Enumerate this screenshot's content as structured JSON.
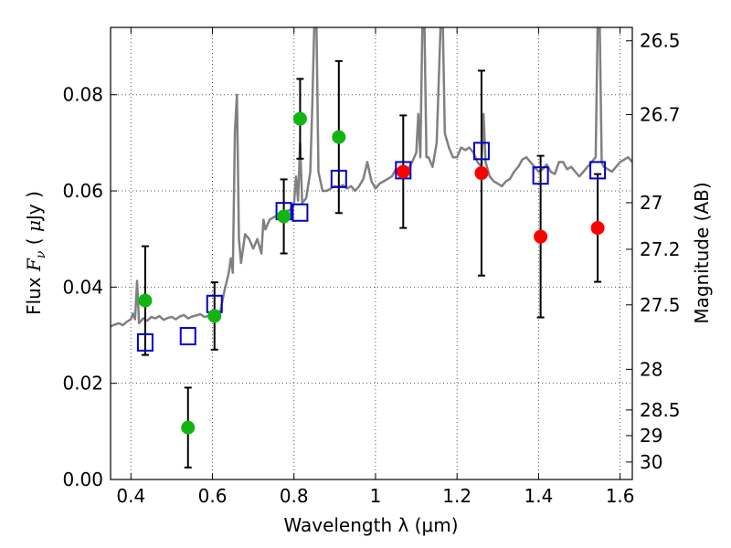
{
  "chart_data": {
    "type": "scatter",
    "xlabel": "Wavelength  λ (μm)",
    "ylabel": "Flux  F_ν  ( μJy )",
    "ylabel_parts": {
      "prefix": "Flux  ",
      "symbol": "F",
      "subscript": "ν",
      "mid": "  ( ",
      "unit_symbol": "μ",
      "unit": "Jy )"
    },
    "y2label": "Magnitude (AB)",
    "xlim": [
      0.35,
      1.63
    ],
    "ylim": [
      0.0,
      0.094
    ],
    "grid": true,
    "x_ticks": [
      {
        "value": 0.4,
        "label": "0.4"
      },
      {
        "value": 0.6,
        "label": "0.6"
      },
      {
        "value": 0.8,
        "label": "0.8"
      },
      {
        "value": 1.0,
        "label": "1"
      },
      {
        "value": 1.2,
        "label": "1.2"
      },
      {
        "value": 1.4,
        "label": "1.4"
      },
      {
        "value": 1.6,
        "label": "1.6"
      }
    ],
    "y_ticks": [
      {
        "value": 0.0,
        "label": "0.00"
      },
      {
        "value": 0.02,
        "label": "0.02"
      },
      {
        "value": 0.04,
        "label": "0.04"
      },
      {
        "value": 0.06,
        "label": "0.06"
      },
      {
        "value": 0.08,
        "label": "0.08"
      }
    ],
    "y2_ticks": [
      {
        "mag": 26.5,
        "label": "26.5"
      },
      {
        "mag": 26.7,
        "label": "26.7"
      },
      {
        "mag": 27.0,
        "label": "27"
      },
      {
        "mag": 27.2,
        "label": "27.2"
      },
      {
        "mag": 27.5,
        "label": "27.5"
      },
      {
        "mag": 28.0,
        "label": "28"
      },
      {
        "mag": 28.5,
        "label": "28.5"
      },
      {
        "mag": 29.0,
        "label": "29"
      },
      {
        "mag": 30.0,
        "label": "30"
      }
    ],
    "colors": {
      "spectrum": "#808080",
      "model_box": "#0000cc",
      "green_point": "#11b511",
      "red_point": "#ff0000",
      "errorbar": "#000000",
      "grid": "#555555"
    },
    "spectrum": [
      [
        0.35,
        0.0318
      ],
      [
        0.36,
        0.0322
      ],
      [
        0.37,
        0.0325
      ],
      [
        0.38,
        0.0321
      ],
      [
        0.39,
        0.0328
      ],
      [
        0.4,
        0.0333
      ],
      [
        0.405,
        0.0345
      ],
      [
        0.41,
        0.0333
      ],
      [
        0.415,
        0.0413
      ],
      [
        0.42,
        0.0325
      ],
      [
        0.43,
        0.0335
      ],
      [
        0.44,
        0.033
      ],
      [
        0.45,
        0.0338
      ],
      [
        0.46,
        0.0335
      ],
      [
        0.47,
        0.034
      ],
      [
        0.48,
        0.0332
      ],
      [
        0.49,
        0.0336
      ],
      [
        0.5,
        0.0338
      ],
      [
        0.51,
        0.0333
      ],
      [
        0.52,
        0.0339
      ],
      [
        0.53,
        0.0342
      ],
      [
        0.54,
        0.0335
      ],
      [
        0.55,
        0.0339
      ],
      [
        0.56,
        0.0341
      ],
      [
        0.57,
        0.0344
      ],
      [
        0.58,
        0.0338
      ],
      [
        0.59,
        0.034
      ],
      [
        0.6,
        0.0345
      ],
      [
        0.61,
        0.0343
      ],
      [
        0.62,
        0.0352
      ],
      [
        0.63,
        0.0395
      ],
      [
        0.64,
        0.043
      ],
      [
        0.645,
        0.046
      ],
      [
        0.65,
        0.043
      ],
      [
        0.655,
        0.0725
      ],
      [
        0.66,
        0.08
      ],
      [
        0.665,
        0.05
      ],
      [
        0.67,
        0.045
      ],
      [
        0.68,
        0.051
      ],
      [
        0.69,
        0.05
      ],
      [
        0.7,
        0.048
      ],
      [
        0.71,
        0.05
      ],
      [
        0.72,
        0.047
      ],
      [
        0.725,
        0.054
      ],
      [
        0.73,
        0.052
      ],
      [
        0.74,
        0.054
      ],
      [
        0.75,
        0.0545
      ],
      [
        0.76,
        0.055
      ],
      [
        0.77,
        0.0555
      ],
      [
        0.78,
        0.0558
      ],
      [
        0.79,
        0.056
      ],
      [
        0.8,
        0.0572
      ],
      [
        0.805,
        0.063
      ],
      [
        0.81,
        0.058
      ],
      [
        0.815,
        0.07
      ],
      [
        0.82,
        0.0575
      ],
      [
        0.83,
        0.0585
      ],
      [
        0.84,
        0.064
      ],
      [
        0.845,
        0.078
      ],
      [
        0.85,
        0.095
      ],
      [
        0.855,
        0.095
      ],
      [
        0.86,
        0.064
      ],
      [
        0.87,
        0.06
      ],
      [
        0.88,
        0.06
      ],
      [
        0.89,
        0.0605
      ],
      [
        0.9,
        0.061
      ],
      [
        0.91,
        0.0608
      ],
      [
        0.92,
        0.0612
      ],
      [
        0.93,
        0.0605
      ],
      [
        0.94,
        0.061
      ],
      [
        0.95,
        0.06
      ],
      [
        0.96,
        0.061
      ],
      [
        0.97,
        0.0625
      ],
      [
        0.98,
        0.066
      ],
      [
        0.99,
        0.062
      ],
      [
        1.0,
        0.0605
      ],
      [
        1.01,
        0.0615
      ],
      [
        1.02,
        0.062
      ],
      [
        1.03,
        0.0625
      ],
      [
        1.04,
        0.063
      ],
      [
        1.05,
        0.0645
      ],
      [
        1.06,
        0.0635
      ],
      [
        1.07,
        0.064
      ],
      [
        1.08,
        0.0645
      ],
      [
        1.09,
        0.066
      ],
      [
        1.1,
        0.068
      ],
      [
        1.105,
        0.076
      ],
      [
        1.11,
        0.067
      ],
      [
        1.115,
        0.095
      ],
      [
        1.12,
        0.095
      ],
      [
        1.125,
        0.067
      ],
      [
        1.13,
        0.067
      ],
      [
        1.14,
        0.065
      ],
      [
        1.15,
        0.07
      ],
      [
        1.16,
        0.095
      ],
      [
        1.165,
        0.095
      ],
      [
        1.17,
        0.072
      ],
      [
        1.18,
        0.069
      ],
      [
        1.19,
        0.067
      ],
      [
        1.2,
        0.067
      ],
      [
        1.21,
        0.069
      ],
      [
        1.22,
        0.0685
      ],
      [
        1.23,
        0.069
      ],
      [
        1.24,
        0.068
      ],
      [
        1.25,
        0.066
      ],
      [
        1.26,
        0.065
      ],
      [
        1.265,
        0.076
      ],
      [
        1.27,
        0.066
      ],
      [
        1.28,
        0.063
      ],
      [
        1.29,
        0.062
      ],
      [
        1.3,
        0.0615
      ],
      [
        1.31,
        0.061
      ],
      [
        1.32,
        0.062
      ],
      [
        1.33,
        0.0625
      ],
      [
        1.34,
        0.064
      ],
      [
        1.35,
        0.065
      ],
      [
        1.36,
        0.0665
      ],
      [
        1.37,
        0.067
      ],
      [
        1.38,
        0.066
      ],
      [
        1.39,
        0.065
      ],
      [
        1.4,
        0.064
      ],
      [
        1.41,
        0.0645
      ],
      [
        1.42,
        0.0655
      ],
      [
        1.43,
        0.064
      ],
      [
        1.44,
        0.0635
      ],
      [
        1.45,
        0.066
      ],
      [
        1.46,
        0.066
      ],
      [
        1.47,
        0.0645
      ],
      [
        1.48,
        0.065
      ],
      [
        1.49,
        0.064
      ],
      [
        1.5,
        0.063
      ],
      [
        1.51,
        0.064
      ],
      [
        1.52,
        0.065
      ],
      [
        1.53,
        0.066
      ],
      [
        1.54,
        0.067
      ],
      [
        1.545,
        0.095
      ],
      [
        1.55,
        0.095
      ],
      [
        1.555,
        0.066
      ],
      [
        1.56,
        0.065
      ],
      [
        1.57,
        0.0645
      ],
      [
        1.58,
        0.064
      ],
      [
        1.59,
        0.065
      ],
      [
        1.6,
        0.066
      ],
      [
        1.61,
        0.0665
      ],
      [
        1.62,
        0.067
      ],
      [
        1.63,
        0.066
      ]
    ],
    "model_boxes": [
      {
        "x": 0.435,
        "y": 0.0285
      },
      {
        "x": 0.54,
        "y": 0.0298
      },
      {
        "x": 0.605,
        "y": 0.0365
      },
      {
        "x": 0.775,
        "y": 0.0558
      },
      {
        "x": 0.815,
        "y": 0.0555
      },
      {
        "x": 0.91,
        "y": 0.0625
      },
      {
        "x": 1.068,
        "y": 0.0643
      },
      {
        "x": 1.26,
        "y": 0.0683
      },
      {
        "x": 1.405,
        "y": 0.0632
      },
      {
        "x": 1.545,
        "y": 0.0643
      }
    ],
    "observed_points": [
      {
        "x": 0.435,
        "y": 0.0372,
        "err": 0.0113,
        "band": "green"
      },
      {
        "x": 0.54,
        "y": 0.0108,
        "err": 0.0083,
        "band": "green"
      },
      {
        "x": 0.605,
        "y": 0.034,
        "err": 0.007,
        "band": "green"
      },
      {
        "x": 0.775,
        "y": 0.0547,
        "err": 0.0077,
        "band": "green"
      },
      {
        "x": 0.815,
        "y": 0.075,
        "err": 0.0083,
        "band": "green"
      },
      {
        "x": 0.91,
        "y": 0.0712,
        "err": 0.0158,
        "band": "green"
      },
      {
        "x": 1.068,
        "y": 0.064,
        "err": 0.0117,
        "band": "red"
      },
      {
        "x": 1.26,
        "y": 0.0637,
        "err": 0.0213,
        "band": "red"
      },
      {
        "x": 1.405,
        "y": 0.0505,
        "err": 0.0168,
        "band": "red"
      },
      {
        "x": 1.545,
        "y": 0.0523,
        "err": 0.0112,
        "band": "red"
      }
    ]
  }
}
